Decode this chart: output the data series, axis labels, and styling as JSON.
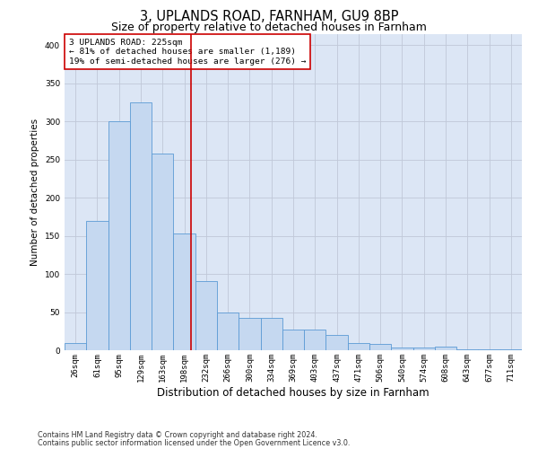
{
  "title1": "3, UPLANDS ROAD, FARNHAM, GU9 8BP",
  "title2": "Size of property relative to detached houses in Farnham",
  "xlabel": "Distribution of detached houses by size in Farnham",
  "ylabel": "Number of detached properties",
  "bin_labels": [
    "26sqm",
    "61sqm",
    "95sqm",
    "129sqm",
    "163sqm",
    "198sqm",
    "232sqm",
    "266sqm",
    "300sqm",
    "334sqm",
    "369sqm",
    "403sqm",
    "437sqm",
    "471sqm",
    "506sqm",
    "540sqm",
    "574sqm",
    "608sqm",
    "643sqm",
    "677sqm",
    "711sqm"
  ],
  "bar_heights": [
    10,
    170,
    300,
    325,
    258,
    153,
    91,
    50,
    42,
    42,
    27,
    27,
    20,
    10,
    8,
    3,
    3,
    5,
    1,
    1,
    1
  ],
  "bar_color": "#c5d8f0",
  "bar_edge_color": "#5b9bd5",
  "grid_color": "#c0c8d8",
  "background_color": "#dce6f5",
  "vline_color": "#cc0000",
  "annotation_text": "3 UPLANDS ROAD: 225sqm\n← 81% of detached houses are smaller (1,189)\n19% of semi-detached houses are larger (276) →",
  "annotation_box_color": "#ffffff",
  "annotation_box_edge": "#cc0000",
  "footnote1": "Contains HM Land Registry data © Crown copyright and database right 2024.",
  "footnote2": "Contains public sector information licensed under the Open Government Licence v3.0.",
  "ylim": [
    0,
    415
  ],
  "title1_fontsize": 10.5,
  "title2_fontsize": 9,
  "xlabel_fontsize": 8.5,
  "ylabel_fontsize": 7.5,
  "tick_fontsize": 6.5,
  "ann_fontsize": 6.8,
  "footnote_fontsize": 5.8
}
